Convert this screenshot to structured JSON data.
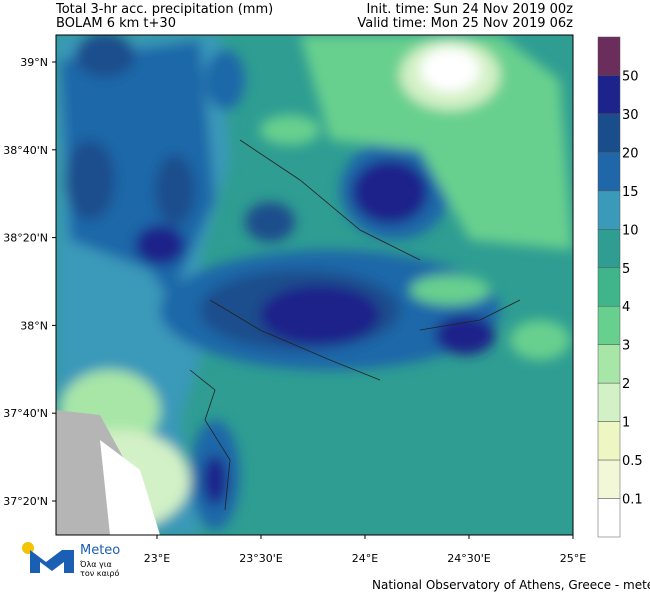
{
  "header": {
    "title": "Total 3-hr acc. precipitation (mm)",
    "model": "BOLAM 6 km t+30",
    "init_time": "Init. time: Sun 24 Nov 2019 00z",
    "valid_time": "Valid time: Mon 25 Nov 2019 06z"
  },
  "axes": {
    "lat_labels": [
      "39°N",
      "38°40'N",
      "38°20'N",
      "38°N",
      "37°40'N",
      "37°20'N"
    ],
    "lon_labels": [
      "23°E",
      "23°30'E",
      "24°E",
      "24°30'E",
      "25°E"
    ]
  },
  "legend": {
    "labels": [
      "50",
      "30",
      "20",
      "15",
      "10",
      "5",
      "4",
      "3",
      "2",
      "1",
      "0.5",
      "0.1"
    ],
    "colors": [
      "#6b2d5c",
      "#1c238a",
      "#1a4d8c",
      "#1f67a9",
      "#3b99b9",
      "#2f9d92",
      "#40b58a",
      "#68d08e",
      "#a7e6a7",
      "#d3f1c6",
      "#eef6c4",
      "#f2f7d8",
      "#ffffff"
    ]
  },
  "logo": {
    "name": "Meteo",
    "tagline_1": "Όλα για",
    "tagline_2": "τον καιρό"
  },
  "footer": "National Observatory of Athens, Greece - meteo.gr"
}
